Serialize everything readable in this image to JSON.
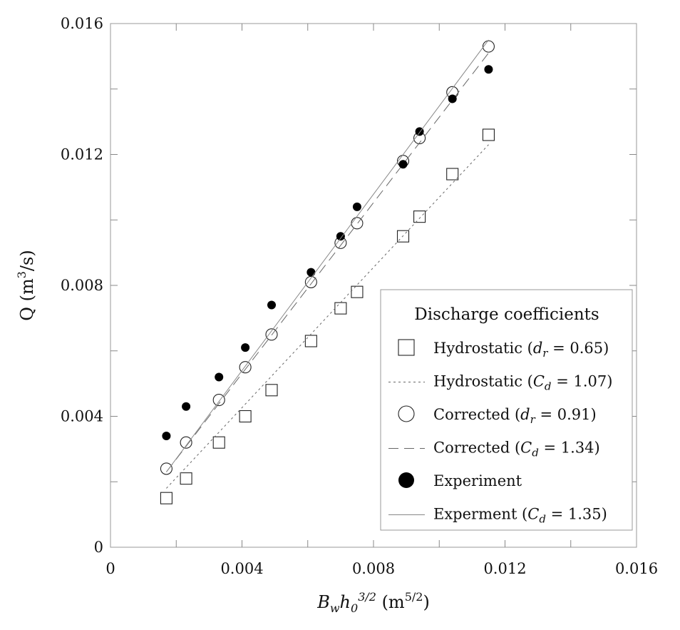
{
  "chart_data": {
    "type": "scatter",
    "xlabel": {
      "main": "B",
      "sub1": "w",
      "mid": "h",
      "sub2": "0",
      "sup": "3/2",
      "unit_open": " (m",
      "unit_sup": "5/2",
      "unit_close": ")"
    },
    "ylabel": {
      "main": "Q (m",
      "sup": "3",
      "close": "/s)"
    },
    "xlim": [
      0,
      0.016
    ],
    "ylim": [
      0,
      0.016
    ],
    "x_ticks": [
      "0",
      "0.004",
      "0.008",
      "0.012",
      "0.016"
    ],
    "y_ticks": [
      "0",
      "0.004",
      "0.008",
      "0.012",
      "0.016"
    ],
    "x_tick_values": [
      0,
      0.004,
      0.008,
      0.012,
      0.016
    ],
    "y_tick_values": [
      0,
      0.004,
      0.008,
      0.012,
      0.016
    ],
    "grid": false,
    "legend": {
      "position": "bottom-right",
      "title": "Discharge coefficients",
      "entries": [
        {
          "name": "Hydrostatic",
          "param": "d",
          "param_sub": "r",
          "value": " = 0.65)",
          "marker": "open-square"
        },
        {
          "name": "Hydrostatic",
          "param": "C",
          "param_sub": "d",
          "value": " = 1.07)",
          "marker": "dotted-line"
        },
        {
          "name": "Corrected",
          "param": "d",
          "param_sub": "r",
          "value": " = 0.91)",
          "marker": "open-circle"
        },
        {
          "name": "Corrected",
          "param": "C",
          "param_sub": "d",
          "value": " = 1.34)",
          "marker": "dashed-line"
        },
        {
          "name": "Experiment",
          "param": "",
          "param_sub": "",
          "value": "",
          "marker": "filled-circle"
        },
        {
          "name": "Experment",
          "param": "C",
          "param_sub": "d",
          "value": " = 1.35)",
          "marker": "solid-line"
        }
      ]
    },
    "series": [
      {
        "kind": "hydrostatic-points",
        "marker": "open-square",
        "x": [
          0.0017,
          0.0023,
          0.0033,
          0.0041,
          0.0049,
          0.0061,
          0.007,
          0.0075,
          0.0089,
          0.0094,
          0.0104,
          0.0115
        ],
        "y": [
          0.0015,
          0.0021,
          0.0032,
          0.004,
          0.0048,
          0.0063,
          0.0073,
          0.0078,
          0.0095,
          0.0101,
          0.0114,
          0.0126
        ]
      },
      {
        "kind": "hydrostatic-fit",
        "line": "dotted",
        "x": [
          0.0017,
          0.0115
        ],
        "y": [
          0.0018,
          0.0123
        ]
      },
      {
        "kind": "corrected-points",
        "marker": "open-circle",
        "x": [
          0.0017,
          0.0023,
          0.0033,
          0.0041,
          0.0049,
          0.0061,
          0.007,
          0.0075,
          0.0089,
          0.0094,
          0.0104,
          0.0115
        ],
        "y": [
          0.0024,
          0.0032,
          0.0045,
          0.0055,
          0.0065,
          0.0081,
          0.0093,
          0.0099,
          0.0118,
          0.0125,
          0.0139,
          0.0153
        ]
      },
      {
        "kind": "corrected-fit",
        "line": "dashed",
        "x": [
          0.0017,
          0.0115
        ],
        "y": [
          0.0023,
          0.0151
        ]
      },
      {
        "kind": "experiment-points",
        "marker": "filled-circle",
        "x": [
          0.0017,
          0.0023,
          0.0033,
          0.0041,
          0.0049,
          0.0061,
          0.007,
          0.0075,
          0.0089,
          0.0094,
          0.0104,
          0.0115
        ],
        "y": [
          0.0034,
          0.0043,
          0.0052,
          0.0061,
          0.0074,
          0.0084,
          0.0095,
          0.0104,
          0.0117,
          0.0127,
          0.0137,
          0.0146
        ]
      },
      {
        "kind": "experiment-fit",
        "line": "solid",
        "x": [
          0.0017,
          0.0115
        ],
        "y": [
          0.0023,
          0.0155
        ]
      }
    ]
  }
}
